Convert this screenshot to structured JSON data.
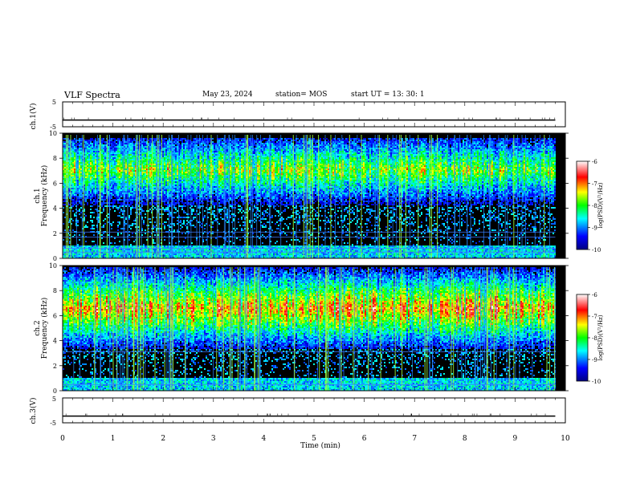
{
  "header": {
    "title": "VLF Spectra",
    "date": "May 23, 2024",
    "station": "station= MOS",
    "start": "start UT =  13: 30: 1"
  },
  "colors": {
    "background": "#ffffff",
    "axes": "#000000",
    "spectrogram_floor": "#000000",
    "colormap": [
      "#000080",
      "#0000ff",
      "#00ffff",
      "#00ff00",
      "#ffff00",
      "#ff0000",
      "#ffffff"
    ]
  },
  "chart_data": [
    {
      "type": "line",
      "panel": "ch1-voltage",
      "ylabel": "ch.1(V)",
      "ylim": [
        -5,
        5
      ],
      "yticks": [
        "5",
        "-5"
      ],
      "xlim": [
        0,
        10
      ],
      "series": [
        {
          "x": [
            0,
            9.8
          ],
          "y": [
            -2.3,
            -2.3
          ]
        }
      ]
    },
    {
      "type": "heatmap",
      "panel": "ch1-spectrogram",
      "ylabel_line1": "ch.1",
      "ylabel_line2": "Frequency (kHz)",
      "ylim": [
        0,
        10
      ],
      "yticks": [
        "0",
        "2",
        "4",
        "6",
        "8",
        "10"
      ],
      "xlim": [
        0,
        10
      ],
      "data_xmax": 9.8,
      "band_khz": [
        4.2,
        9.5
      ],
      "band_peak_khz": 7.0,
      "steady_lines_khz": [
        0.5,
        0.8,
        1.7,
        2.1
      ],
      "colorbar": {
        "label": "log(PSD)(V²/Hz)",
        "range": [
          -10,
          -6
        ],
        "ticks": [
          "-6",
          "-7",
          "-8",
          "-9",
          "-10"
        ]
      }
    },
    {
      "type": "heatmap",
      "panel": "ch2-spectrogram",
      "ylabel_line1": "ch.2",
      "ylabel_line2": "Frequency (kHz)",
      "ylim": [
        0,
        10
      ],
      "yticks": [
        "0",
        "2",
        "4",
        "6",
        "8",
        "10"
      ],
      "xlim": [
        0,
        10
      ],
      "data_xmax": 9.8,
      "band_khz": [
        3.3,
        9.8
      ],
      "band_peak_khz": 6.5,
      "steady_lines_khz": [
        0.5,
        3.1
      ],
      "colorbar": {
        "label": "log(PSD)(V²/Hz)",
        "range": [
          -10,
          -6
        ],
        "ticks": [
          "-6",
          "-7",
          "-8",
          "-9",
          "-10"
        ]
      }
    },
    {
      "type": "line",
      "panel": "ch3-voltage",
      "ylabel": "ch.3(V)",
      "ylim": [
        -5,
        5
      ],
      "yticks": [
        "5",
        "-5"
      ],
      "xlim": [
        0,
        10
      ],
      "xlabel": "Time (min)",
      "xticks": [
        "0",
        "1",
        "2",
        "3",
        "4",
        "5",
        "6",
        "7",
        "8",
        "9",
        "10"
      ],
      "series": [
        {
          "x": [
            0,
            9.8
          ],
          "y": [
            -2.3,
            -2.3
          ]
        }
      ]
    }
  ]
}
